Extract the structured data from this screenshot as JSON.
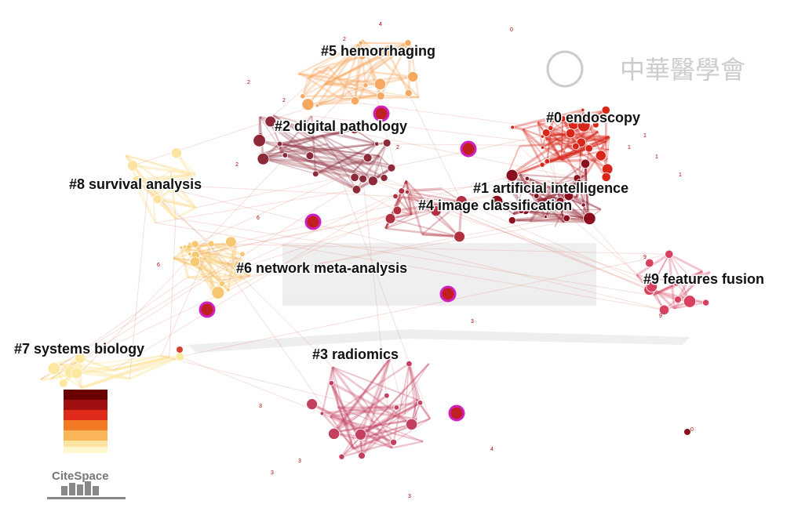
{
  "watermark": "中華醫學會",
  "clusters": [
    "#0 endoscopy",
    "#1 artificial intelligence",
    "#2 digital pathology",
    "#3 radiomics",
    "#4 image classification",
    "#5 hemorrhaging",
    "#6 network meta-analysis",
    "#7 systems biology",
    "#8 survival analysis",
    "#9 features fusion"
  ],
  "node_labels": [
    "2",
    "2",
    "2",
    "2",
    "3",
    "3",
    "3",
    "3",
    "4",
    "4",
    "1",
    "1",
    "1",
    "0",
    "0",
    "6",
    "9",
    "9",
    "3",
    "4",
    "2",
    "1",
    "6",
    "2"
  ],
  "logo": "CiteSpace"
}
